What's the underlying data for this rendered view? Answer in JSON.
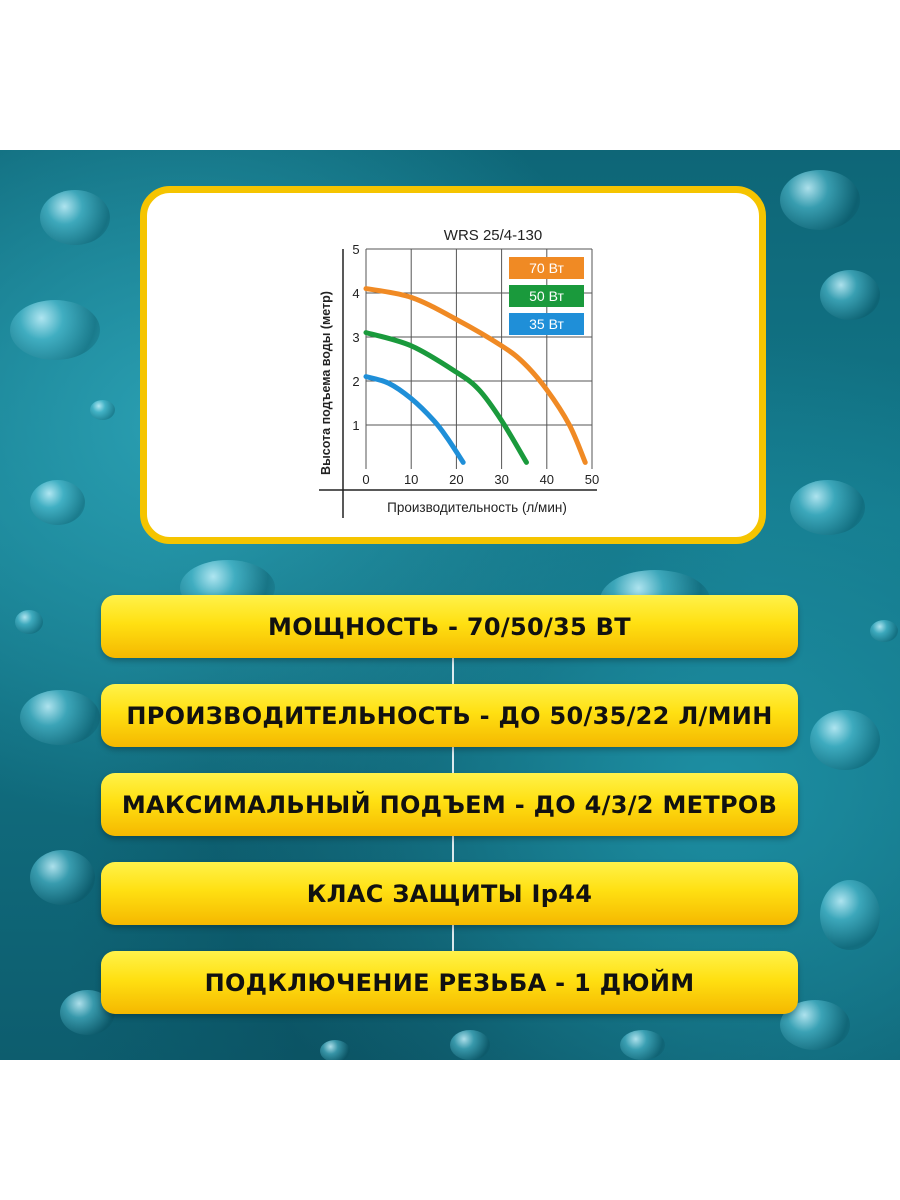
{
  "chart_data": {
    "type": "line",
    "title": "WRS 25/4-130",
    "xlabel": "Производительность (л/мин)",
    "ylabel": "Высота подъема воды (метр)",
    "xlim": [
      0,
      50
    ],
    "ylim": [
      0,
      5
    ],
    "x_ticks": [
      "0",
      "10",
      "20",
      "30",
      "40",
      "50"
    ],
    "y_ticks": [
      "1",
      "2",
      "3",
      "4",
      "5"
    ],
    "grid": true,
    "legend_position": "top-right",
    "series": [
      {
        "name": "70 Вт",
        "color": "#f08a24",
        "x": [
          0,
          10,
          20,
          30,
          35,
          40,
          45,
          48.5
        ],
        "y": [
          4.1,
          3.9,
          3.4,
          2.8,
          2.4,
          1.8,
          1.0,
          0.15
        ]
      },
      {
        "name": "50 Вт",
        "color": "#1a9a3c",
        "x": [
          0,
          10,
          20,
          25,
          30,
          35.5
        ],
        "y": [
          3.1,
          2.8,
          2.2,
          1.8,
          1.1,
          0.15
        ]
      },
      {
        "name": "35 Вт",
        "color": "#1f8fd8",
        "x": [
          0,
          5,
          10,
          15,
          18,
          21.5
        ],
        "y": [
          2.1,
          1.95,
          1.6,
          1.1,
          0.7,
          0.15
        ]
      }
    ]
  },
  "features": [
    "МОЩНОСТЬ - 70/50/35 ВТ",
    "ПРОИЗВОДИТЕЛЬНОСТЬ - ДО 50/35/22 Л/МИН",
    "МАКСИМАЛЬНЫЙ ПОДЪЕМ - ДО 4/3/2 МЕТРОВ",
    "КЛАС ЗАЩИТЫ Ip44",
    "ПОДКЛЮЧЕНИЕ РЕЗЬБА - 1 ДЮЙМ"
  ]
}
